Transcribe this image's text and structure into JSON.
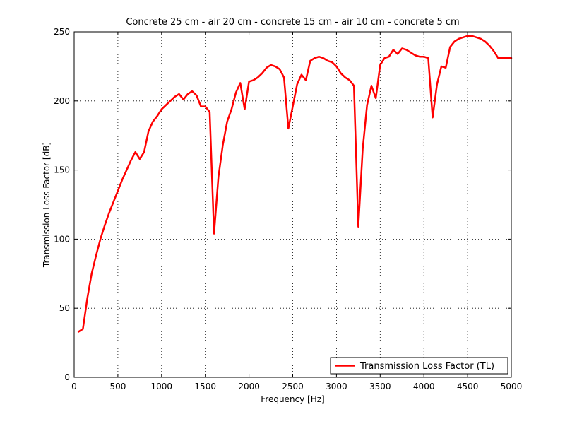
{
  "chart_data": {
    "type": "line",
    "title": "Concrete 25 cm - air 20 cm - concrete 15 cm - air 10 cm - concrete 5 cm",
    "xlabel": "Frequency [Hz]",
    "ylabel": "Transmission Loss Factor [dB]",
    "xlim": [
      0,
      5000
    ],
    "ylim": [
      0,
      250
    ],
    "xticks": [
      0,
      500,
      1000,
      1500,
      2000,
      2500,
      3000,
      3500,
      4000,
      4500,
      5000
    ],
    "yticks": [
      0,
      50,
      100,
      150,
      200,
      250
    ],
    "grid": true,
    "legend_location": "bottom-right",
    "series": [
      {
        "name": "Transmission Loss Factor (TL)",
        "color": "#ff0000",
        "x": [
          50,
          100,
          150,
          200,
          250,
          300,
          350,
          400,
          450,
          500,
          550,
          600,
          650,
          700,
          750,
          800,
          850,
          900,
          950,
          1000,
          1050,
          1100,
          1150,
          1200,
          1250,
          1300,
          1350,
          1400,
          1450,
          1500,
          1550,
          1600,
          1650,
          1700,
          1750,
          1800,
          1850,
          1900,
          1950,
          2000,
          2050,
          2100,
          2150,
          2200,
          2250,
          2300,
          2350,
          2400,
          2450,
          2500,
          2550,
          2600,
          2650,
          2700,
          2750,
          2800,
          2850,
          2900,
          2950,
          3000,
          3050,
          3100,
          3150,
          3200,
          3250,
          3300,
          3350,
          3400,
          3450,
          3500,
          3550,
          3600,
          3650,
          3700,
          3750,
          3800,
          3850,
          3900,
          3950,
          4000,
          4050,
          4100,
          4150,
          4200,
          4250,
          4300,
          4350,
          4400,
          4450,
          4500,
          4550,
          4600,
          4650,
          4700,
          4750,
          4800,
          4850,
          4900,
          4950,
          5000
        ],
        "y": [
          33,
          35,
          57,
          75,
          88,
          100,
          110,
          119,
          127,
          135,
          143,
          150,
          157,
          163,
          158,
          163,
          178,
          185,
          189,
          194,
          197,
          200,
          203,
          205,
          201,
          205,
          207,
          204,
          196,
          196,
          192,
          104,
          145,
          168,
          185,
          194,
          206,
          213,
          194,
          214,
          215,
          217,
          220,
          224,
          226,
          225,
          223,
          217,
          180,
          196,
          212,
          219,
          215,
          229,
          231,
          232,
          231,
          229,
          228,
          225,
          220,
          217,
          215,
          211,
          109,
          165,
          197,
          211,
          202,
          226,
          231,
          232,
          237,
          234,
          238,
          237,
          235,
          233,
          232,
          232,
          231,
          188,
          212,
          225,
          224,
          239,
          243,
          245,
          246,
          247,
          247,
          246,
          245,
          243,
          240,
          236,
          231,
          231,
          231,
          231
        ]
      }
    ]
  }
}
